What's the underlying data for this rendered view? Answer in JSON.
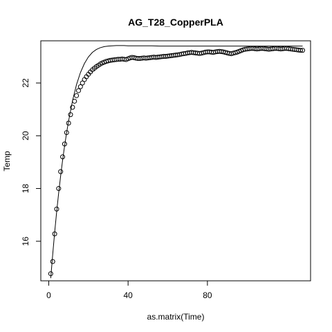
{
  "chart_data": {
    "type": "scatter",
    "title": "AG_T28_CopperPLA",
    "xlabel": "as.matrix(Time)",
    "ylabel": "Temp",
    "xlim": [
      -4,
      132
    ],
    "ylim": [
      14.5,
      23.6
    ],
    "x_ticks": [
      0,
      40,
      80
    ],
    "y_ticks": [
      16,
      18,
      20,
      22
    ],
    "x_tick_labels": [
      "0",
      "40",
      "80"
    ],
    "y_tick_labels": [
      "16",
      "18",
      "20",
      "22"
    ],
    "grid": false,
    "legend": "none",
    "series": [
      {
        "kind": "points",
        "marker": "open-circle",
        "x": [
          1,
          2,
          3,
          4,
          5,
          6,
          7,
          8,
          9,
          10,
          11,
          12,
          13,
          14,
          15,
          16,
          17,
          18,
          19,
          20,
          21,
          22,
          23,
          24,
          25,
          26,
          27,
          28,
          29,
          30,
          31,
          32,
          33,
          34,
          35,
          36,
          37,
          38,
          39,
          40,
          41,
          42,
          43,
          44,
          45,
          46,
          47,
          48,
          49,
          50,
          51,
          52,
          53,
          54,
          55,
          56,
          57,
          58,
          59,
          60,
          61,
          62,
          63,
          64,
          65,
          66,
          67,
          68,
          69,
          70,
          71,
          72,
          73,
          74,
          75,
          76,
          77,
          78,
          79,
          80,
          81,
          82,
          83,
          84,
          85,
          86,
          87,
          88,
          89,
          90,
          91,
          92,
          93,
          94,
          95,
          96,
          97,
          98,
          99,
          100,
          101,
          102,
          103,
          104,
          105,
          106,
          107,
          108,
          109,
          110,
          111,
          112,
          113,
          114,
          115,
          116,
          117,
          118,
          119,
          120,
          121,
          122,
          123,
          124,
          125,
          126,
          127,
          128
        ],
        "y": [
          14.77,
          15.23,
          16.28,
          17.22,
          18.0,
          18.64,
          19.2,
          19.69,
          20.12,
          20.48,
          20.8,
          21.08,
          21.31,
          21.52,
          21.71,
          21.86,
          22.0,
          22.13,
          22.24,
          22.33,
          22.42,
          22.5,
          22.56,
          22.62,
          22.67,
          22.72,
          22.76,
          22.79,
          22.82,
          22.84,
          22.86,
          22.87,
          22.88,
          22.89,
          22.9,
          22.9,
          22.91,
          22.9,
          22.89,
          22.92,
          22.95,
          22.97,
          22.96,
          22.94,
          22.93,
          22.93,
          22.94,
          22.95,
          22.94,
          22.95,
          22.96,
          22.97,
          22.98,
          22.97,
          22.98,
          22.99,
          23.0,
          23.01,
          23.01,
          23.02,
          23.03,
          23.04,
          23.05,
          23.06,
          23.07,
          23.08,
          23.1,
          23.11,
          23.12,
          23.14,
          23.15,
          23.16,
          23.15,
          23.14,
          23.13,
          23.12,
          23.13,
          23.15,
          23.17,
          23.18,
          23.18,
          23.17,
          23.16,
          23.18,
          23.19,
          23.2,
          23.19,
          23.18,
          23.16,
          23.14,
          23.12,
          23.11,
          23.13,
          23.15,
          23.17,
          23.2,
          23.23,
          23.26,
          23.28,
          23.29,
          23.3,
          23.31,
          23.31,
          23.3,
          23.29,
          23.3,
          23.31,
          23.31,
          23.3,
          23.29,
          23.28,
          23.29,
          23.3,
          23.31,
          23.31,
          23.3,
          23.29,
          23.3,
          23.31,
          23.31,
          23.3,
          23.29,
          23.28,
          23.27,
          23.26,
          23.25,
          23.24,
          23.24
        ]
      },
      {
        "kind": "fitted-line",
        "x": [
          1,
          2,
          3,
          4,
          5,
          6,
          7,
          8,
          9,
          10,
          12,
          14,
          16,
          18,
          20,
          22,
          24,
          26,
          28,
          30,
          32,
          34,
          36,
          38,
          40,
          44,
          48,
          52,
          56,
          60,
          70,
          80,
          90,
          100,
          110,
          120,
          128
        ],
        "y": [
          14.6,
          15.5,
          16.35,
          17.12,
          17.83,
          18.48,
          19.08,
          19.62,
          20.11,
          20.56,
          21.33,
          21.94,
          22.4,
          22.74,
          22.99,
          23.16,
          23.27,
          23.34,
          23.38,
          23.4,
          23.41,
          23.42,
          23.42,
          23.42,
          23.41,
          23.41,
          23.41,
          23.41,
          23.4,
          23.4,
          23.4,
          23.4,
          23.4,
          23.4,
          23.4,
          23.4,
          23.4
        ]
      }
    ]
  }
}
